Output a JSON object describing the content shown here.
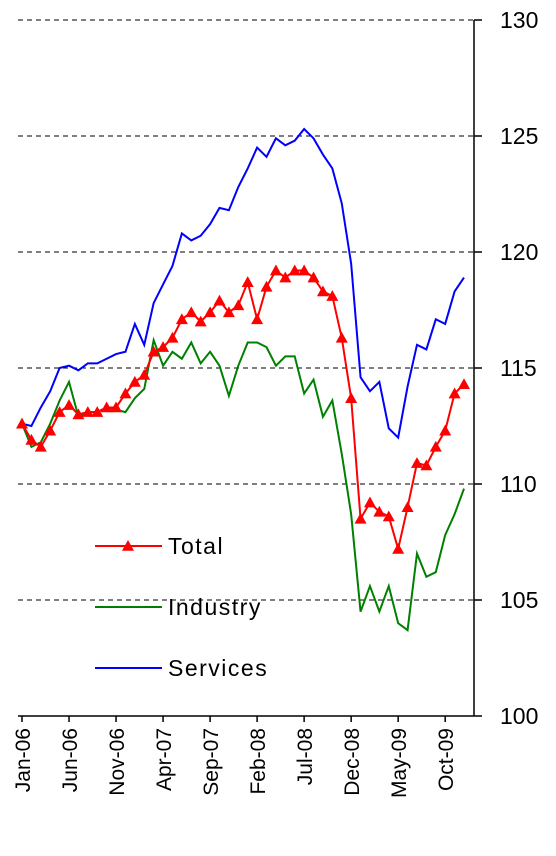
{
  "chart_data": {
    "type": "line",
    "categories": [
      "Jan-06",
      null,
      null,
      null,
      null,
      "Jun-06",
      null,
      null,
      null,
      null,
      "Nov-06",
      null,
      null,
      null,
      null,
      "Apr-07",
      null,
      null,
      null,
      null,
      "Sep-07",
      null,
      null,
      null,
      null,
      "Feb-08",
      null,
      null,
      null,
      null,
      "Jul-08",
      null,
      null,
      null,
      null,
      "Dec-08",
      null,
      null,
      null,
      null,
      "May-09",
      null,
      null,
      null,
      null,
      "Oct-09",
      null,
      null
    ],
    "series": [
      {
        "name": "Total",
        "color": "#ff0000",
        "marker": "triangle",
        "values": [
          112.6,
          111.9,
          111.6,
          112.3,
          113.1,
          113.4,
          113.0,
          113.1,
          113.1,
          113.3,
          113.3,
          113.9,
          114.4,
          114.7,
          115.7,
          115.9,
          116.3,
          117.1,
          117.4,
          117.0,
          117.4,
          117.9,
          117.4,
          117.7,
          118.7,
          117.1,
          118.5,
          119.2,
          118.9,
          119.2,
          119.2,
          118.9,
          118.3,
          118.1,
          116.3,
          113.7,
          108.5,
          109.2,
          108.8,
          108.6,
          107.2,
          109.0,
          110.9,
          110.8,
          111.6,
          112.3,
          113.9,
          114.3
        ]
      },
      {
        "name": "Industry",
        "color": "#008000",
        "values": [
          112.6,
          111.6,
          111.8,
          112.6,
          113.6,
          114.4,
          112.9,
          113.1,
          113.1,
          113.3,
          113.2,
          113.1,
          113.7,
          114.1,
          116.2,
          115.1,
          115.7,
          115.4,
          116.1,
          115.2,
          115.7,
          115.1,
          113.8,
          115.1,
          116.1,
          116.1,
          115.9,
          115.1,
          115.5,
          115.5,
          113.9,
          114.5,
          112.9,
          113.6,
          111.3,
          108.7,
          104.5,
          105.6,
          104.5,
          105.6,
          104.0,
          103.7,
          107.0,
          106.0,
          106.2,
          107.8,
          108.7,
          109.8
        ]
      },
      {
        "name": "Services",
        "color": "#0000ff",
        "values": [
          112.6,
          112.5,
          113.3,
          114.0,
          115.0,
          115.1,
          114.9,
          115.2,
          115.2,
          115.4,
          115.6,
          115.7,
          116.9,
          116.0,
          117.8,
          118.6,
          119.4,
          120.8,
          120.5,
          120.7,
          121.2,
          121.9,
          121.8,
          122.8,
          123.6,
          124.5,
          124.1,
          124.9,
          124.6,
          124.8,
          125.3,
          124.9,
          124.2,
          123.6,
          122.1,
          119.5,
          114.6,
          114.0,
          114.4,
          112.4,
          112.0,
          114.2,
          116.0,
          115.8,
          117.1,
          116.9,
          118.3,
          118.9
        ]
      }
    ],
    "ylim": [
      100,
      130
    ],
    "yticks": [
      100,
      105,
      110,
      115,
      120,
      125,
      130
    ],
    "y_axis_side": "right",
    "grid": true,
    "legend_position": "lower left"
  }
}
